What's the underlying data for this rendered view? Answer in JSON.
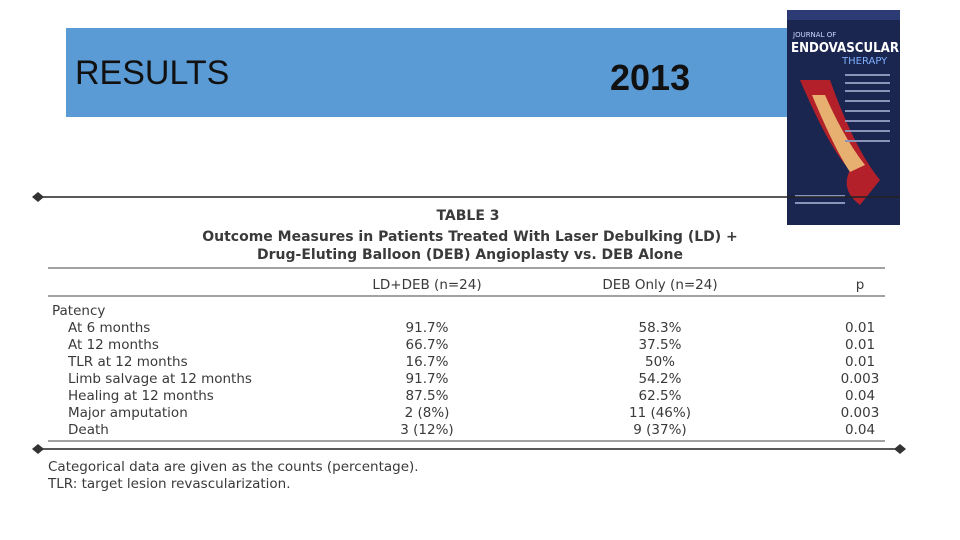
{
  "header": {
    "title": "RESULTS",
    "year": "2013"
  },
  "journal_cover": {
    "line1": "JOURNAL OF",
    "line2": "ENDOVASCULAR",
    "line3": "THERAPY"
  },
  "table": {
    "label": "TABLE 3",
    "caption": [
      "Outcome Measures in Patients Treated With Laser Debulking (LD) +",
      "Drug-Eluting Balloon (DEB) Angioplasty vs. DEB Alone"
    ],
    "columns": [
      "LD+DEB (n=24)",
      "DEB Only (n=24)",
      "p"
    ],
    "rows": [
      [
        "Patency"
      ],
      [
        "At 6 months",
        "91.7%",
        "58.3%",
        "0.01"
      ],
      [
        "At 12 months",
        "66.7%",
        "37.5%",
        "0.01"
      ],
      [
        "TLR at 12 months",
        "16.7%",
        "50%",
        "0.01"
      ],
      [
        "Limb salvage at 12 months",
        "91.7%",
        "54.2%",
        "0.003"
      ],
      [
        "Healing at 12 months",
        "87.5%",
        "62.5%",
        "0.04"
      ],
      [
        "Major amputation",
        "2 (8%)",
        "11 (46%)",
        "0.003"
      ],
      [
        "Death",
        "3 (12%)",
        "9 (37%)",
        "0.04"
      ]
    ],
    "footnotes": [
      "Categorical data are given as the counts (percentage).",
      "TLR: target lesion revascularization."
    ]
  }
}
